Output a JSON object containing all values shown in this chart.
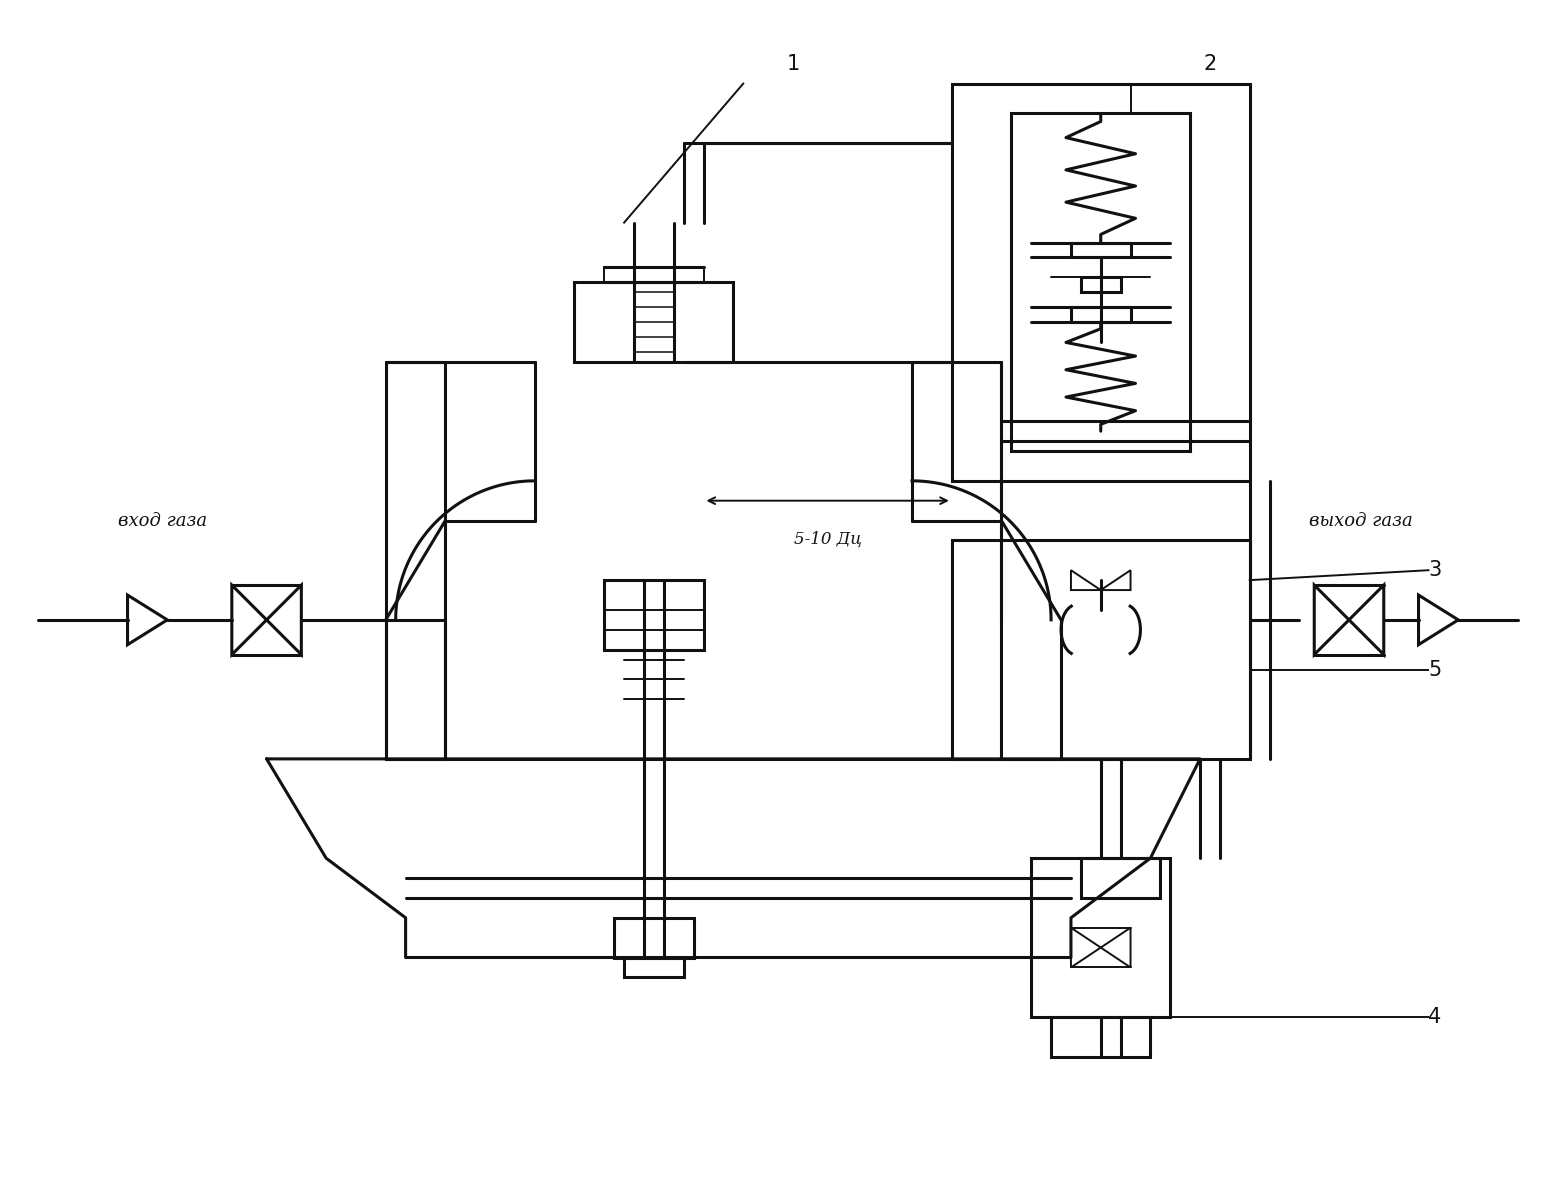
{
  "bg_color": "#ffffff",
  "line_color": "#111111",
  "lw": 2.2,
  "lw_thin": 1.4,
  "label_1": "1",
  "label_2": "2",
  "label_3": "3",
  "label_4": "4",
  "label_5": "5",
  "text_inlet": "вход газа",
  "text_outlet": "выход газа",
  "text_dim": "5-10 Дц"
}
